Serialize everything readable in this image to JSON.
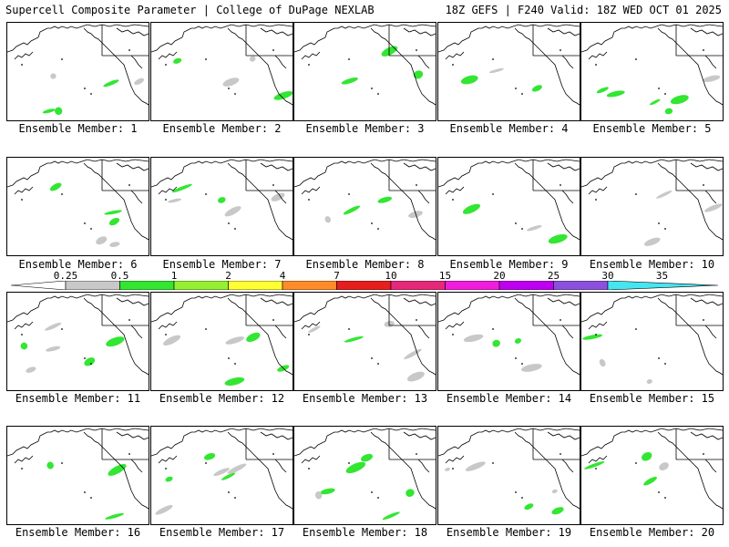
{
  "header": {
    "left_title": "Supercell Composite Parameter | College of DuPage NEXLAB",
    "right_title": "18Z GEFS | F240 Valid: 18Z WED OCT 01 2025"
  },
  "panels": [
    "Ensemble Member: 1",
    "Ensemble Member: 2",
    "Ensemble Member: 3",
    "Ensemble Member: 4",
    "Ensemble Member: 5",
    "Ensemble Member: 6",
    "Ensemble Member: 7",
    "Ensemble Member: 8",
    "Ensemble Member: 9",
    "Ensemble Member: 10",
    "Ensemble Member: 11",
    "Ensemble Member: 12",
    "Ensemble Member: 13",
    "Ensemble Member: 14",
    "Ensemble Member: 15",
    "Ensemble Member: 16",
    "Ensemble Member: 17",
    "Ensemble Member: 18",
    "Ensemble Member: 19",
    "Ensemble Member: 20"
  ],
  "colorbar": {
    "ticks": [
      "0.25",
      "0.5",
      "1",
      "2",
      "4",
      "7",
      "10",
      "15",
      "20",
      "25",
      "30",
      "35"
    ],
    "colors": [
      "#ffffff",
      "#c8c8c8",
      "#32e632",
      "#96f032",
      "#ffff32",
      "#ff8c28",
      "#e61e1e",
      "#e6287a",
      "#f01edc",
      "#be00f0",
      "#8c50dc",
      "#46e6f0"
    ]
  },
  "legend_colors": {
    "weak": "#c8c8c8",
    "light_green": "#32e632",
    "yellow_green": "#96f032",
    "yellow": "#ffff32"
  }
}
